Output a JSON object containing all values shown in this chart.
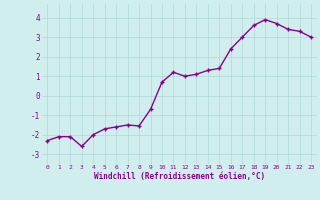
{
  "x": [
    0,
    1,
    2,
    3,
    4,
    5,
    6,
    7,
    8,
    9,
    10,
    11,
    12,
    13,
    14,
    15,
    16,
    17,
    18,
    19,
    20,
    21,
    22,
    23
  ],
  "y": [
    -2.3,
    -2.1,
    -2.1,
    -2.6,
    -2.0,
    -1.7,
    -1.6,
    -1.5,
    -1.55,
    -0.7,
    0.7,
    1.2,
    1.0,
    1.1,
    1.3,
    1.4,
    2.4,
    3.0,
    3.6,
    3.9,
    3.7,
    3.4,
    3.3,
    3.0
  ],
  "line_color": "#8b008b",
  "marker_color": "#8b008b",
  "bg_color": "#d0eeee",
  "grid_color": "#b0d8d8",
  "xlabel": "Windchill (Refroidissement éolien,°C)",
  "xlabel_color": "#8b008b",
  "tick_color": "#8b008b",
  "xlim": [
    -0.5,
    23.5
  ],
  "ylim": [
    -3.5,
    4.7
  ],
  "yticks": [
    -3,
    -2,
    -1,
    0,
    1,
    2,
    3,
    4
  ],
  "xticks": [
    0,
    1,
    2,
    3,
    4,
    5,
    6,
    7,
    8,
    9,
    10,
    11,
    12,
    13,
    14,
    15,
    16,
    17,
    18,
    19,
    20,
    21,
    22,
    23
  ],
  "marker_size": 2.5,
  "line_width": 1.0
}
